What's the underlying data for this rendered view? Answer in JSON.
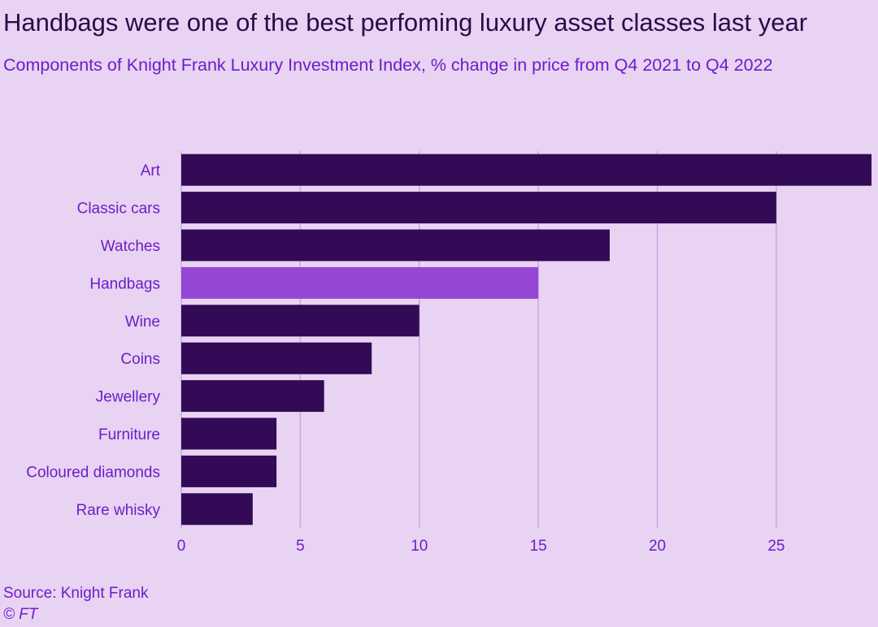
{
  "header": {
    "title": "Handbags were one of the best perfoming luxury asset classes last year",
    "subtitle": "Components of Knight Frank Luxury Investment Index, % change in price from Q4 2021 to Q4 2022"
  },
  "footer": {
    "source": "Source: Knight Frank",
    "copyright": "© FT"
  },
  "colors": {
    "bar": "#320a55",
    "highlight": "#9646d4",
    "grid": "#c9a8e3",
    "text": "#6d1dc9"
  },
  "chart_data": {
    "type": "bar",
    "orientation": "horizontal",
    "categories": [
      "Art",
      "Classic cars",
      "Watches",
      "Handbags",
      "Wine",
      "Coins",
      "Jewellery",
      "Furniture",
      "Coloured diamonds",
      "Rare whisky"
    ],
    "values": [
      29,
      25,
      18,
      15,
      10,
      8,
      6,
      4,
      4,
      3
    ],
    "highlight": "Handbags",
    "xlim": [
      0,
      29
    ],
    "xticks": [
      "0",
      "5",
      "10",
      "15",
      "20",
      "25"
    ],
    "grid": true
  }
}
